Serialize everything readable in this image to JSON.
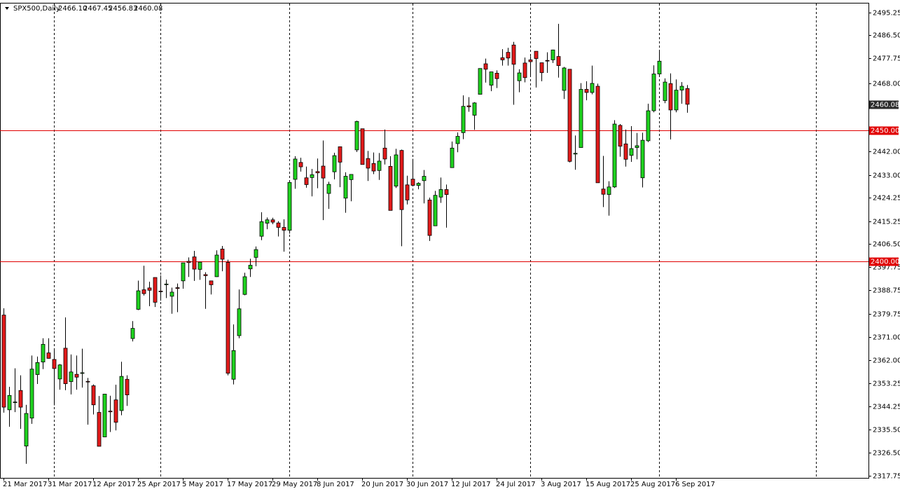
{
  "chart_data": {
    "type": "candlestick",
    "title": "SPX500,Daily",
    "header_values": [
      "2466.10",
      "2467.45",
      "2456.83",
      "2460.08"
    ],
    "up_color": "#1fd31f",
    "down_color": "#e21a1a",
    "categories": [
      "21 Mar 2017",
      null,
      null,
      null,
      null,
      null,
      null,
      null,
      "31 Mar 2017",
      null,
      null,
      null,
      null,
      null,
      null,
      null,
      "12 Apr 2017",
      null,
      null,
      null,
      null,
      null,
      null,
      null,
      "25 Apr 2017",
      null,
      null,
      null,
      null,
      null,
      null,
      null,
      "5 May 2017",
      null,
      null,
      null,
      null,
      null,
      null,
      null,
      "17 May 2017",
      null,
      null,
      null,
      null,
      null,
      null,
      null,
      "29 May 2017",
      null,
      null,
      null,
      null,
      null,
      null,
      null,
      "8 Jun 2017",
      null,
      null,
      null,
      null,
      null,
      null,
      null,
      "20 Jun 2017",
      null,
      null,
      null,
      null,
      null,
      null,
      null,
      "30 Jun 2017",
      null,
      null,
      null,
      null,
      null,
      null,
      null,
      "12 Jul 2017",
      null,
      null,
      null,
      null,
      null,
      null,
      null,
      "24 Jul 2017",
      null,
      null,
      null,
      null,
      null,
      null,
      null,
      "3 Aug 2017",
      null,
      null,
      null,
      null,
      null,
      null,
      null,
      "15 Aug 2017",
      null,
      null,
      null,
      null,
      null,
      null,
      null,
      "25 Aug 2017",
      null,
      null,
      null,
      null,
      null,
      null,
      null,
      "6 Sep 2017",
      null,
      null
    ],
    "open": [
      2379.3,
      2343.0,
      2346.0,
      2350.4,
      2329.1,
      2339.8,
      2356.5,
      2361.3,
      2364.8,
      2362.3,
      2354.8,
      2366.6,
      2353.8,
      2356.6,
      2357.2,
      2353.9,
      2352.2,
      2342.0,
      2332.6,
      2342.5,
      2346.8,
      2342.7,
      2354.7,
      2370.3,
      2381.5,
      2389.0,
      2389.7,
      2393.7,
      2388.5,
      2391.1,
      2386.5,
      2389.8,
      2392.4,
      2399.9,
      2401.6,
      2396.8,
      2394.8,
      2392.4,
      2394.0,
      2404.6,
      2399.5,
      2354.7,
      2371.4,
      2387.2,
      2397.0,
      2401.4,
      2409.5,
      2414.5,
      2415.8,
      2414.6,
      2412.9,
      2411.8,
      2431.3,
      2437.8,
      2431.9,
      2432.0,
      2434.3,
      2436.4,
      2425.9,
      2434.2,
      2443.8,
      2424.1,
      2431.2,
      2442.6,
      2450.7,
      2439.3,
      2437.4,
      2434.7,
      2443.3,
      2436.3,
      2428.7,
      2442.4,
      2429.2,
      2431.4,
      2429.0,
      2430.8,
      2423.4,
      2413.5,
      2424.5,
      2427.4,
      2435.8,
      2445.0,
      2449.2,
      2459.5,
      2455.9,
      2463.9,
      2475.6,
      2467.4,
      2472.0,
      2477.9,
      2480.0,
      2482.8,
      2469.1,
      2475.9,
      2477.1,
      2480.4,
      2476.0,
      2476.9,
      2477.1,
      2478.4,
      2465.4,
      2473.5,
      2441.0,
      2443.5,
      2465.8,
      2464.6,
      2467.0,
      2427.6,
      2425.5,
      2428.4,
      2452.0,
      2444.9,
      2440.5,
      2443.5,
      2431.9,
      2446.1,
      2457.6,
      2471.7,
      2461.5,
      2468.0,
      2457.9,
      2465.5,
      2466.1
    ],
    "high": [
      2381.9,
      2351.8,
      2358.9,
      2356.2,
      2344.9,
      2363.8,
      2363.4,
      2370.4,
      2370.4,
      2365.9,
      2360.5,
      2378.4,
      2364.2,
      2363.8,
      2366.4,
      2355.2,
      2352.7,
      2348.3,
      2349.1,
      2348.4,
      2352.6,
      2361.4,
      2356.2,
      2377.0,
      2392.5,
      2398.2,
      2392.1,
      2393.7,
      2394.5,
      2392.9,
      2389.8,
      2391.4,
      2399.3,
      2401.4,
      2403.9,
      2399.7,
      2395.7,
      2392.4,
      2404.1,
      2405.8,
      2400.5,
      2375.7,
      2389.1,
      2395.5,
      2400.9,
      2405.6,
      2418.7,
      2416.7,
      2416.6,
      2415.3,
      2416.0,
      2430.1,
      2440.2,
      2439.6,
      2436.2,
      2435.3,
      2439.3,
      2446.2,
      2430.4,
      2441.5,
      2443.8,
      2434.0,
      2433.2,
      2453.8,
      2450.7,
      2442.2,
      2441.6,
      2441.4,
      2450.4,
      2440.2,
      2443.0,
      2442.7,
      2432.7,
      2439.2,
      2430.2,
      2434.9,
      2424.3,
      2426.9,
      2432.0,
      2429.3,
      2445.8,
      2449.3,
      2463.5,
      2462.8,
      2460.9,
      2473.8,
      2477.6,
      2472.5,
      2473.1,
      2481.2,
      2481.7,
      2484.0,
      2473.5,
      2478.0,
      2478.5,
      2480.4,
      2476.0,
      2480.0,
      2481.0,
      2490.9,
      2474.4,
      2473.5,
      2448.1,
      2468.2,
      2468.9,
      2474.9,
      2468.0,
      2440.3,
      2430.6,
      2454.0,
      2452.5,
      2450.4,
      2451.7,
      2449.1,
      2449.2,
      2460.3,
      2475.0,
      2480.4,
      2470.0,
      2471.9,
      2469.6,
      2468.6,
      2467.45
    ],
    "low": [
      2341.9,
      2336.5,
      2342.1,
      2335.7,
      2322.3,
      2337.6,
      2352.9,
      2358.6,
      2362.6,
      2344.7,
      2350.7,
      2350.5,
      2348.9,
      2350.7,
      2351.5,
      2337.3,
      2341.2,
      2329.0,
      2332.5,
      2334.5,
      2335.1,
      2340.9,
      2344.5,
      2369.2,
      2381.2,
      2386.8,
      2382.7,
      2382.4,
      2384.8,
      2385.8,
      2379.8,
      2380.4,
      2389.4,
      2393.9,
      2392.4,
      2392.8,
      2381.7,
      2387.2,
      2393.9,
      2396.1,
      2356.2,
      2352.7,
      2370.4,
      2386.9,
      2393.9,
      2398.0,
      2408.0,
      2412.2,
      2414.1,
      2409.4,
      2403.6,
      2410.5,
      2427.7,
      2434.3,
      2428.1,
      2424.8,
      2427.9,
      2415.7,
      2420.0,
      2431.3,
      2428.3,
      2418.5,
      2422.9,
      2441.8,
      2437.0,
      2430.7,
      2433.3,
      2431.1,
      2437.0,
      2419.4,
      2428.0,
      2405.7,
      2421.7,
      2428.7,
      2427.5,
      2422.1,
      2407.7,
      2413.5,
      2422.3,
      2412.8,
      2435.8,
      2441.7,
      2446.7,
      2457.2,
      2450.3,
      2463.9,
      2468.4,
      2465.1,
      2466.3,
      2474.9,
      2474.9,
      2459.9,
      2464.7,
      2468.5,
      2471.1,
      2466.5,
      2468.9,
      2472.1,
      2475.9,
      2470.3,
      2462.1,
      2437.8,
      2435.0,
      2443.5,
      2461.6,
      2463.9,
      2430.0,
      2420.7,
      2417.4,
      2428.0,
      2440.0,
      2436.2,
      2438.0,
      2439.0,
      2428.2,
      2445.6,
      2457.0,
      2470.5,
      2460.5,
      2446.6,
      2457.0,
      2460.3,
      2456.83
    ],
    "close": [
      2344.0,
      2348.5,
      2346.0,
      2344.0,
      2341.6,
      2358.6,
      2361.1,
      2368.1,
      2362.7,
      2358.8,
      2360.2,
      2353.0,
      2357.5,
      2355.5,
      2357.2,
      2353.8,
      2344.9,
      2329.0,
      2349.0,
      2342.2,
      2338.2,
      2355.8,
      2348.7,
      2374.2,
      2388.6,
      2387.5,
      2388.8,
      2384.2,
      2388.3,
      2391.2,
      2388.1,
      2389.5,
      2399.3,
      2399.4,
      2396.9,
      2399.6,
      2394.4,
      2390.9,
      2402.3,
      2400.7,
      2357.0,
      2365.7,
      2381.7,
      2394.0,
      2398.4,
      2404.4,
      2415.1,
      2415.8,
      2414.9,
      2412.9,
      2411.8,
      2430.1,
      2439.1,
      2436.1,
      2429.3,
      2433.1,
      2433.8,
      2431.8,
      2429.4,
      2440.4,
      2437.9,
      2432.5,
      2433.2,
      2453.5,
      2437.0,
      2435.6,
      2434.5,
      2438.3,
      2439.1,
      2419.4,
      2440.7,
      2419.7,
      2423.4,
      2429.0,
      2429.8,
      2432.5,
      2409.8,
      2425.2,
      2427.4,
      2425.5,
      2443.3,
      2447.8,
      2459.3,
      2459.1,
      2460.6,
      2473.8,
      2473.5,
      2472.5,
      2469.9,
      2477.1,
      2477.8,
      2475.4,
      2472.1,
      2470.3,
      2476.4,
      2477.6,
      2472.2,
      2476.8,
      2480.9,
      2474.9,
      2474.0,
      2438.2,
      2441.3,
      2465.8,
      2464.6,
      2468.1,
      2430.0,
      2425.6,
      2428.4,
      2452.5,
      2444.0,
      2439.0,
      2443.1,
      2444.2,
      2446.3,
      2457.6,
      2471.7,
      2476.6,
      2468.6,
      2457.9,
      2465.5,
      2467.0,
      2460.08
    ],
    "ylim": [
      2316.9,
      2498.7
    ],
    "yticks": [
      2495.25,
      {
        "value": 2486.5,
        "label": "2486.50"
      },
      2477.75,
      {
        "value": 2468,
        "label": "2468.00"
      },
      {
        "value": 2442,
        "label": "2442.00"
      },
      {
        "value": 2433,
        "label": "2433.00"
      },
      2424.25,
      2415.25,
      {
        "value": 2406.5,
        "label": "2406.50"
      },
      2397.75,
      2388.75,
      2379.75,
      {
        "value": 2371,
        "label": "2371.00"
      },
      {
        "value": 2362,
        "label": "2362.00"
      },
      2353.25,
      2344.25,
      {
        "value": 2335.5,
        "label": "2335.50"
      },
      {
        "value": 2326.5,
        "label": "2326.50"
      },
      2317.75
    ],
    "hlines": [
      {
        "value": 2450,
        "label": "2450.00",
        "color": "#e00000"
      },
      {
        "value": 2400,
        "label": "2400.00",
        "color": "#e00000"
      }
    ],
    "price_label": {
      "value": 2460.08,
      "label": "2460.08",
      "color": "#2b2b2b"
    }
  }
}
